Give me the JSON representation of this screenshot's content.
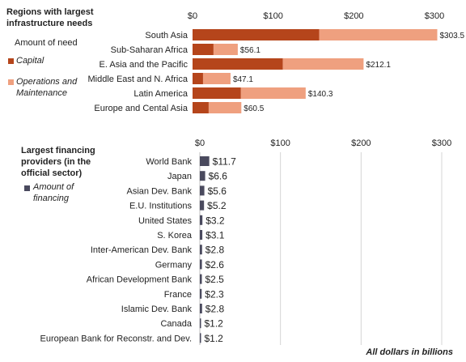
{
  "chart_data": [
    {
      "type": "bar",
      "orientation": "horizontal",
      "stacked": true,
      "title": "Regions with largest infrastructure needs",
      "legend_title": "Amount of need",
      "categories": [
        "South Asia",
        "Sub-Saharan Africa",
        "E. Asia and the Pacific",
        "Middle East and N. Africa",
        "Latin America",
        "Europe and Cental Asia"
      ],
      "series": [
        {
          "name": "Capital",
          "color": "#b5451b",
          "values": [
            157,
            26,
            112,
            13,
            60,
            20
          ]
        },
        {
          "name": "Operations and Maintenance",
          "color": "#efa07f",
          "values": [
            146.5,
            30.1,
            100.1,
            34.1,
            80.3,
            40.5
          ]
        }
      ],
      "totals": [
        303.5,
        56.1,
        212.1,
        47.1,
        140.3,
        60.5
      ],
      "total_labels": [
        "$303.5",
        "$56.1",
        "$212.1",
        "$47.1",
        "$140.3",
        "$60.5"
      ],
      "xlim": [
        0,
        300
      ],
      "x_ticks": [
        0,
        100,
        200,
        300
      ],
      "x_tick_labels": [
        "$0",
        "$100",
        "$200",
        "$300"
      ],
      "legend_position": "left"
    },
    {
      "type": "bar",
      "orientation": "horizontal",
      "title": "Largest financing providers (in the official sector)",
      "categories": [
        "World Bank",
        "Japan",
        "Asian Dev. Bank",
        "E.U. Institutions",
        "United States",
        "S. Korea",
        "Inter-American Dev. Bank",
        "Germany",
        "African Development Bank",
        "France",
        "Islamic Dev. Bank",
        "Canada",
        "European Bank for Reconstr. and Dev."
      ],
      "series": [
        {
          "name": "Amount of financing",
          "color": "#4a4a5e",
          "values": [
            11.7,
            6.6,
            5.6,
            5.2,
            3.2,
            3.1,
            2.8,
            2.6,
            2.5,
            2.3,
            2.8,
            1.2,
            1.2
          ]
        }
      ],
      "value_labels": [
        "$11.7",
        "$6.6",
        "$5.6",
        "$5.2",
        "$3.2",
        "$3.1",
        "$2.8",
        "$2.6",
        "$2.5",
        "$2.3",
        "$2.8",
        "$1.2",
        "$1.2"
      ],
      "xlim": [
        0,
        300
      ],
      "x_ticks": [
        0,
        100,
        200,
        300
      ],
      "x_tick_labels": [
        "$0",
        "$100",
        "$200",
        "$300"
      ],
      "grid": true,
      "legend_position": "left"
    }
  ],
  "top_title_lines": [
    "Regions with largest",
    "infrastructure needs"
  ],
  "top_legend_title": "Amount of need",
  "top_legend_items": [
    {
      "lines": [
        "Capital"
      ],
      "color": "#b5451b"
    },
    {
      "lines": [
        "Operations and",
        "Maintenance"
      ],
      "color": "#efa07f"
    }
  ],
  "bottom_title_lines": [
    "Largest financing",
    "providers (in the",
    "official sector)"
  ],
  "bottom_legend_item": {
    "lines": [
      "Amount of",
      "financing"
    ],
    "color": "#4a4a5e"
  },
  "footnote": "All dollars in billions"
}
